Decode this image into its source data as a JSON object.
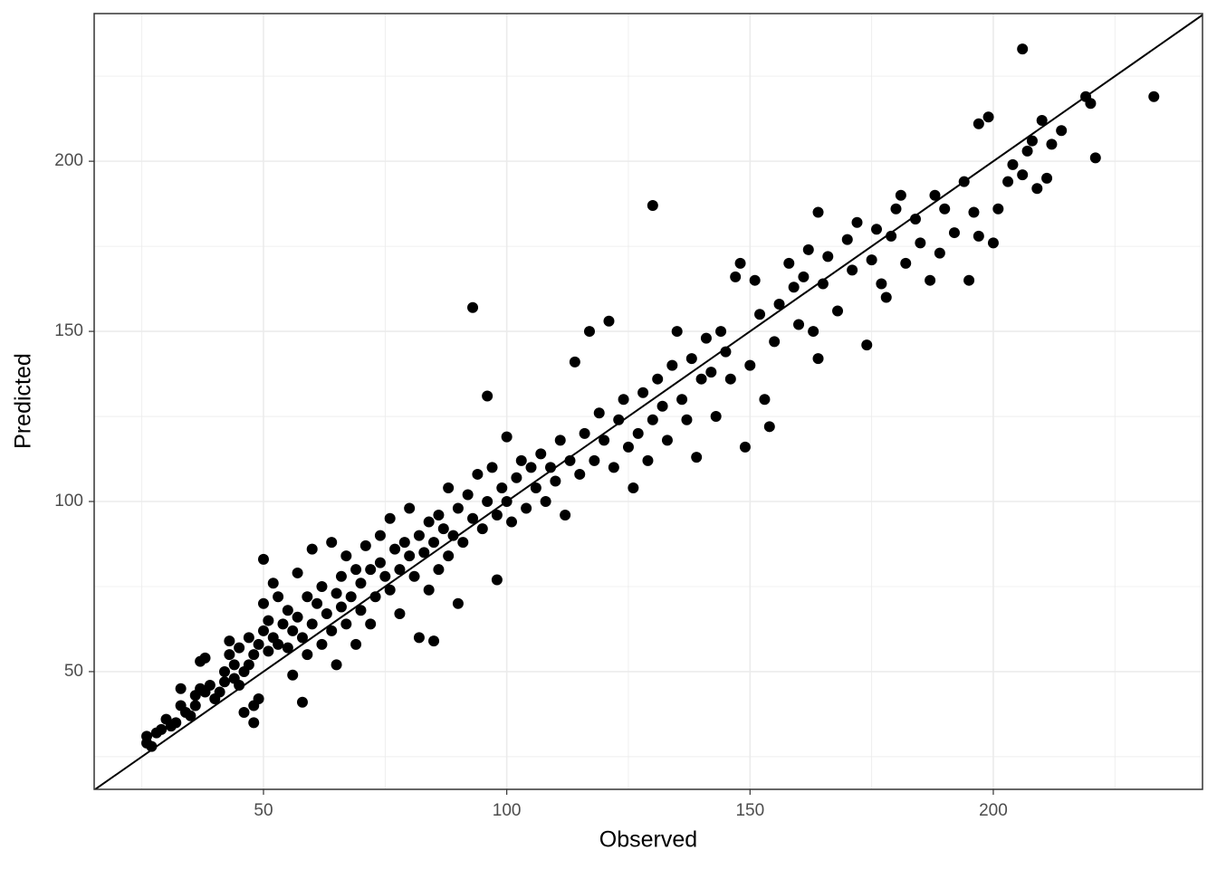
{
  "chart_data": {
    "type": "scatter",
    "x_label": "Observed",
    "y_label": "Predicted",
    "xlim": [
      15.2,
      243
    ],
    "ylim": [
      15.4,
      243.4
    ],
    "xticks": [
      50,
      100,
      150,
      200
    ],
    "yticks": [
      50,
      100,
      150,
      200
    ],
    "x_minor_grid": [
      25,
      75,
      125,
      175,
      225
    ],
    "y_minor_grid": [
      25,
      75,
      125,
      175,
      225
    ],
    "grid": true,
    "color": "#000000",
    "reference_line": {
      "slope": 1,
      "intercept": 0
    },
    "x": [
      26,
      26,
      27,
      28,
      29,
      30,
      31,
      32,
      33,
      33,
      34,
      35,
      36,
      36,
      37,
      37,
      38,
      38,
      39,
      40,
      41,
      42,
      42,
      43,
      43,
      44,
      44,
      45,
      45,
      46,
      46,
      47,
      47,
      48,
      48,
      48,
      49,
      49,
      50,
      50,
      50,
      51,
      51,
      52,
      52,
      53,
      53,
      54,
      55,
      55,
      56,
      56,
      57,
      57,
      58,
      58,
      59,
      59,
      60,
      60,
      61,
      62,
      62,
      63,
      64,
      64,
      65,
      65,
      66,
      66,
      67,
      67,
      68,
      69,
      69,
      70,
      70,
      71,
      72,
      72,
      73,
      74,
      74,
      75,
      76,
      76,
      77,
      78,
      78,
      79,
      80,
      80,
      81,
      82,
      82,
      83,
      84,
      84,
      85,
      85,
      86,
      86,
      87,
      88,
      88,
      89,
      90,
      90,
      91,
      92,
      93,
      93,
      94,
      95,
      96,
      96,
      97,
      98,
      98,
      99,
      100,
      100,
      101,
      102,
      103,
      104,
      105,
      106,
      107,
      108,
      109,
      110,
      111,
      112,
      113,
      114,
      115,
      116,
      117,
      118,
      119,
      120,
      121,
      122,
      123,
      124,
      125,
      126,
      127,
      128,
      129,
      130,
      130,
      131,
      132,
      133,
      134,
      135,
      136,
      137,
      138,
      139,
      140,
      141,
      142,
      143,
      144,
      145,
      146,
      147,
      148,
      149,
      150,
      151,
      152,
      153,
      154,
      155,
      156,
      158,
      159,
      160,
      161,
      162,
      163,
      164,
      164,
      165,
      166,
      168,
      170,
      171,
      172,
      174,
      175,
      176,
      177,
      178,
      179,
      180,
      181,
      182,
      184,
      185,
      187,
      188,
      189,
      190,
      192,
      194,
      195,
      196,
      197,
      197,
      199,
      200,
      201,
      203,
      204,
      206,
      206,
      207,
      208,
      209,
      210,
      211,
      212,
      214,
      219,
      220,
      221,
      233
    ],
    "values": [
      31,
      29,
      28,
      32,
      33,
      36,
      34,
      35,
      40,
      45,
      38,
      37,
      40,
      43,
      45,
      53,
      54,
      44,
      46,
      42,
      44,
      47,
      50,
      59,
      55,
      48,
      52,
      57,
      46,
      38,
      50,
      52,
      60,
      35,
      40,
      55,
      42,
      58,
      62,
      83,
      70,
      56,
      65,
      60,
      76,
      58,
      72,
      64,
      57,
      68,
      62,
      49,
      79,
      66,
      41,
      60,
      72,
      55,
      64,
      86,
      70,
      58,
      75,
      67,
      88,
      62,
      73,
      52,
      78,
      69,
      64,
      84,
      72,
      58,
      80,
      76,
      68,
      87,
      80,
      64,
      72,
      90,
      82,
      78,
      74,
      95,
      86,
      80,
      67,
      88,
      84,
      98,
      78,
      90,
      60,
      85,
      94,
      74,
      88,
      59,
      96,
      80,
      92,
      84,
      104,
      90,
      98,
      70,
      88,
      102,
      95,
      157,
      108,
      92,
      100,
      131,
      110,
      96,
      77,
      104,
      100,
      119,
      94,
      107,
      112,
      98,
      110,
      104,
      114,
      100,
      110,
      106,
      118,
      96,
      112,
      141,
      108,
      120,
      150,
      112,
      126,
      118,
      153,
      110,
      124,
      130,
      116,
      104,
      120,
      132,
      112,
      187,
      124,
      136,
      128,
      118,
      140,
      150,
      130,
      124,
      142,
      113,
      136,
      148,
      138,
      125,
      150,
      144,
      136,
      166,
      170,
      116,
      140,
      165,
      155,
      130,
      122,
      147,
      158,
      170,
      163,
      152,
      166,
      174,
      150,
      142,
      185,
      164,
      172,
      156,
      177,
      168,
      182,
      146,
      171,
      180,
      164,
      160,
      178,
      186,
      190,
      170,
      183,
      176,
      165,
      190,
      173,
      186,
      179,
      194,
      165,
      185,
      178,
      211,
      213,
      176,
      186,
      194,
      199,
      196,
      233,
      203,
      206,
      192,
      212,
      195,
      205,
      209,
      219,
      217,
      201,
      219
    ]
  }
}
